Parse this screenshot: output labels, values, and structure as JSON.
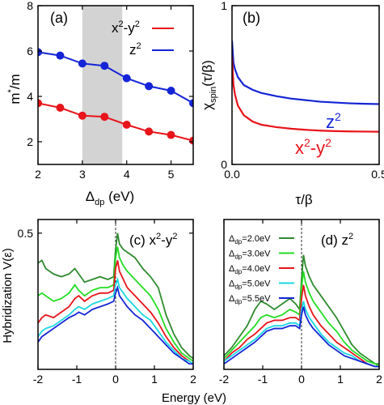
{
  "chart_data": [
    {
      "panel": "(a)",
      "type": "line",
      "xlabel_main": "Δ",
      "xlabel_sub": "dp",
      "xlabel_unit": " (eV)",
      "ylabel_main": "m",
      "ylabel_sup": "*",
      "ylabel_rest": "/m",
      "xlim": [
        2,
        5.5
      ],
      "ylim": [
        1,
        8
      ],
      "xticks": [
        2,
        3,
        4,
        5
      ],
      "yticks": [
        2,
        4,
        6,
        8
      ],
      "shaded_range": [
        3.0,
        3.9
      ],
      "legend": "top-right",
      "series": [
        {
          "name": "x2-y2",
          "label_base": "x",
          "label_sup": "2",
          "label_mid": "-y",
          "label_sup2": "2",
          "color": "#e8141b",
          "x": [
            2.0,
            2.5,
            3.0,
            3.5,
            4.0,
            4.5,
            5.0,
            5.5
          ],
          "y": [
            3.7,
            3.5,
            3.15,
            3.1,
            2.75,
            2.45,
            2.3,
            2.05
          ]
        },
        {
          "name": "z2",
          "label_base": "z",
          "label_sup": "2",
          "label_mid": "",
          "label_sup2": "",
          "color": "#1424d6",
          "x": [
            2.0,
            2.5,
            3.0,
            3.5,
            4.0,
            4.5,
            5.0,
            5.5
          ],
          "y": [
            5.95,
            5.8,
            5.45,
            5.35,
            4.8,
            4.45,
            4.25,
            3.7
          ]
        }
      ]
    },
    {
      "panel": "(b)",
      "type": "line",
      "xlabel": "τ/β",
      "ylabel_main": "χ",
      "ylabel_sub": "spin",
      "ylabel_rest": "(τ/β)",
      "xlim": [
        0,
        0.5
      ],
      "ylim": [
        0,
        1
      ],
      "xticks": [
        0.0,
        0.5
      ],
      "xtick_labels": [
        "0.0",
        "0.5"
      ],
      "yticks": [
        0,
        1
      ],
      "series": [
        {
          "name": "z2",
          "label_base": "z",
          "label_sup": "2",
          "color": "#1424d6",
          "x": [
            0.0,
            0.005,
            0.01,
            0.02,
            0.04,
            0.07,
            0.1,
            0.15,
            0.2,
            0.25,
            0.3,
            0.35,
            0.4,
            0.45,
            0.5
          ],
          "y": [
            0.78,
            0.64,
            0.6,
            0.55,
            0.5,
            0.47,
            0.45,
            0.43,
            0.415,
            0.405,
            0.395,
            0.39,
            0.385,
            0.382,
            0.38
          ]
        },
        {
          "name": "x2-y2",
          "label_base": "x",
          "label_sup": "2",
          "label_mid": "-y",
          "label_sup2": "2",
          "color": "#e8141b",
          "x": [
            0.0,
            0.005,
            0.01,
            0.02,
            0.04,
            0.07,
            0.1,
            0.15,
            0.2,
            0.25,
            0.3,
            0.35,
            0.4,
            0.45,
            0.5
          ],
          "y": [
            0.68,
            0.5,
            0.44,
            0.37,
            0.31,
            0.27,
            0.25,
            0.235,
            0.225,
            0.218,
            0.213,
            0.21,
            0.208,
            0.207,
            0.206
          ]
        }
      ]
    },
    {
      "panel": "(c)",
      "type": "line",
      "panel_label_base": "(c) x",
      "panel_sup": "2",
      "panel_mid": "-y",
      "panel_sup2": "2",
      "ylabel": "Hybridization V(ε)",
      "xlim": [
        -2,
        2
      ],
      "ylim": [
        0,
        0.55
      ],
      "xticks": [
        -2,
        -1,
        0,
        1,
        2
      ],
      "yticks": [
        0.5
      ],
      "ytick_labels": [
        "0.5"
      ],
      "series": [
        {
          "name": "Δdp=2.0eV",
          "color": "#2e8b2e",
          "x": [
            -2.0,
            -1.9,
            -1.8,
            -1.6,
            -1.4,
            -1.2,
            -1.05,
            -0.95,
            -0.8,
            -0.6,
            -0.4,
            -0.2,
            -0.05,
            0.0,
            0.05,
            0.1,
            0.2,
            0.3,
            0.5,
            0.7,
            0.9,
            1.1,
            1.3,
            1.5,
            1.7,
            1.9,
            2.0
          ],
          "y": [
            0.39,
            0.4,
            0.37,
            0.35,
            0.34,
            0.35,
            0.37,
            0.35,
            0.32,
            0.33,
            0.34,
            0.33,
            0.34,
            0.44,
            0.5,
            0.46,
            0.44,
            0.43,
            0.41,
            0.37,
            0.34,
            0.3,
            0.2,
            0.13,
            0.08,
            0.05,
            0.04
          ]
        },
        {
          "name": "Δdp=3.0eV",
          "color": "#22dd22",
          "x": [
            -2.0,
            -1.9,
            -1.8,
            -1.6,
            -1.4,
            -1.2,
            -1.05,
            -0.95,
            -0.8,
            -0.6,
            -0.4,
            -0.2,
            -0.05,
            0.0,
            0.05,
            0.1,
            0.2,
            0.3,
            0.5,
            0.7,
            0.9,
            1.1,
            1.3,
            1.5,
            1.7,
            1.9,
            2.0
          ],
          "y": [
            0.27,
            0.28,
            0.27,
            0.25,
            0.26,
            0.28,
            0.31,
            0.29,
            0.27,
            0.29,
            0.3,
            0.3,
            0.31,
            0.41,
            0.45,
            0.41,
            0.38,
            0.36,
            0.33,
            0.3,
            0.27,
            0.22,
            0.15,
            0.1,
            0.06,
            0.04,
            0.03
          ]
        },
        {
          "name": "Δdp=4.0eV",
          "color": "#e8141b",
          "x": [
            -2.0,
            -1.9,
            -1.8,
            -1.6,
            -1.4,
            -1.2,
            -1.05,
            -0.95,
            -0.8,
            -0.6,
            -0.4,
            -0.2,
            -0.05,
            0.0,
            0.05,
            0.1,
            0.2,
            0.3,
            0.5,
            0.7,
            0.9,
            1.1,
            1.3,
            1.5,
            1.7,
            1.9,
            2.0
          ],
          "y": [
            0.17,
            0.19,
            0.2,
            0.19,
            0.21,
            0.23,
            0.26,
            0.27,
            0.25,
            0.27,
            0.28,
            0.28,
            0.29,
            0.37,
            0.4,
            0.36,
            0.33,
            0.3,
            0.27,
            0.24,
            0.21,
            0.17,
            0.12,
            0.08,
            0.05,
            0.03,
            0.02
          ]
        },
        {
          "name": "Δdp=5.0eV",
          "color": "#18d8e0",
          "x": [
            -2.0,
            -1.9,
            -1.8,
            -1.6,
            -1.4,
            -1.2,
            -1.05,
            -0.95,
            -0.8,
            -0.6,
            -0.4,
            -0.2,
            -0.05,
            0.0,
            0.05,
            0.1,
            0.2,
            0.3,
            0.5,
            0.7,
            0.9,
            1.1,
            1.3,
            1.5,
            1.7,
            1.9,
            2.0
          ],
          "y": [
            0.12,
            0.14,
            0.15,
            0.16,
            0.18,
            0.2,
            0.22,
            0.23,
            0.22,
            0.24,
            0.25,
            0.26,
            0.27,
            0.31,
            0.33,
            0.3,
            0.28,
            0.26,
            0.23,
            0.2,
            0.18,
            0.14,
            0.1,
            0.07,
            0.04,
            0.03,
            0.02
          ]
        },
        {
          "name": "Δdp=5.5eV",
          "color": "#1424d6",
          "x": [
            -2.0,
            -1.9,
            -1.8,
            -1.6,
            -1.4,
            -1.2,
            -1.05,
            -0.95,
            -0.8,
            -0.6,
            -0.4,
            -0.2,
            -0.05,
            0.0,
            0.05,
            0.1,
            0.2,
            0.3,
            0.5,
            0.7,
            0.9,
            1.1,
            1.3,
            1.5,
            1.7,
            1.9,
            2.0
          ],
          "y": [
            0.1,
            0.12,
            0.13,
            0.15,
            0.17,
            0.19,
            0.2,
            0.21,
            0.2,
            0.22,
            0.23,
            0.24,
            0.25,
            0.28,
            0.3,
            0.27,
            0.25,
            0.23,
            0.2,
            0.18,
            0.15,
            0.12,
            0.09,
            0.06,
            0.04,
            0.02,
            0.02
          ]
        }
      ]
    },
    {
      "panel": "(d)",
      "type": "line",
      "panel_label_base": "(d) z",
      "panel_sup": "2",
      "xlim": [
        -2,
        2
      ],
      "ylim": [
        0,
        0.55
      ],
      "xticks": [
        -2,
        -1,
        0,
        1,
        2
      ],
      "legend": "top-left",
      "legend_prefix": "Δ",
      "legend_sub": "dp",
      "series": [
        {
          "name": "Δdp=2.0eV",
          "label_value": "=2.0eV",
          "color": "#2e8b2e",
          "x": [
            -2.0,
            -1.8,
            -1.6,
            -1.4,
            -1.2,
            -1.05,
            -0.9,
            -0.7,
            -0.5,
            -0.3,
            -0.15,
            -0.05,
            0.0,
            0.05,
            0.1,
            0.2,
            0.3,
            0.5,
            0.7,
            0.9,
            1.1,
            1.3,
            1.5,
            1.7,
            1.9,
            2.0
          ],
          "y": [
            0.05,
            0.08,
            0.12,
            0.16,
            0.22,
            0.25,
            0.24,
            0.22,
            0.24,
            0.26,
            0.24,
            0.22,
            0.33,
            0.42,
            0.38,
            0.34,
            0.31,
            0.27,
            0.23,
            0.19,
            0.14,
            0.09,
            0.06,
            0.04,
            0.02,
            0.02
          ]
        },
        {
          "name": "Δdp=3.0eV",
          "label_value": "=3.0eV",
          "color": "#22dd22",
          "x": [
            -2.0,
            -1.8,
            -1.6,
            -1.4,
            -1.2,
            -1.05,
            -0.9,
            -0.7,
            -0.5,
            -0.3,
            -0.15,
            -0.05,
            0.0,
            0.05,
            0.1,
            0.2,
            0.3,
            0.5,
            0.7,
            0.9,
            1.1,
            1.3,
            1.5,
            1.7,
            1.9,
            2.0
          ],
          "y": [
            0.04,
            0.07,
            0.1,
            0.13,
            0.16,
            0.19,
            0.2,
            0.19,
            0.2,
            0.22,
            0.21,
            0.2,
            0.3,
            0.36,
            0.32,
            0.28,
            0.25,
            0.21,
            0.17,
            0.14,
            0.1,
            0.07,
            0.05,
            0.03,
            0.02,
            0.01
          ]
        },
        {
          "name": "Δdp=4.0eV",
          "label_value": "=4.0eV",
          "color": "#e8141b",
          "x": [
            -2.0,
            -1.8,
            -1.6,
            -1.4,
            -1.2,
            -1.05,
            -0.9,
            -0.7,
            -0.5,
            -0.3,
            -0.15,
            -0.05,
            0.0,
            0.05,
            0.1,
            0.2,
            0.3,
            0.5,
            0.7,
            0.9,
            1.1,
            1.3,
            1.5,
            1.7,
            1.9,
            2.0
          ],
          "y": [
            0.03,
            0.06,
            0.08,
            0.11,
            0.13,
            0.15,
            0.17,
            0.18,
            0.18,
            0.19,
            0.19,
            0.18,
            0.26,
            0.31,
            0.27,
            0.23,
            0.2,
            0.16,
            0.13,
            0.1,
            0.08,
            0.06,
            0.04,
            0.02,
            0.01,
            0.01
          ]
        },
        {
          "name": "Δdp=5.0eV",
          "label_value": "=5.0eV",
          "color": "#18d8e0",
          "x": [
            -2.0,
            -1.8,
            -1.6,
            -1.4,
            -1.2,
            -1.05,
            -0.9,
            -0.7,
            -0.5,
            -0.3,
            -0.15,
            -0.05,
            0.0,
            0.05,
            0.1,
            0.2,
            0.3,
            0.5,
            0.7,
            0.9,
            1.1,
            1.3,
            1.5,
            1.7,
            1.9,
            2.0
          ],
          "y": [
            0.03,
            0.05,
            0.07,
            0.09,
            0.11,
            0.13,
            0.15,
            0.16,
            0.16,
            0.17,
            0.17,
            0.16,
            0.22,
            0.25,
            0.22,
            0.19,
            0.17,
            0.13,
            0.1,
            0.08,
            0.06,
            0.05,
            0.03,
            0.02,
            0.01,
            0.01
          ]
        },
        {
          "name": "Δdp=5.5eV",
          "label_value": "=5.5eV",
          "color": "#1424d6",
          "x": [
            -2.0,
            -1.8,
            -1.6,
            -1.4,
            -1.2,
            -1.05,
            -0.9,
            -0.7,
            -0.5,
            -0.3,
            -0.15,
            -0.05,
            0.0,
            0.05,
            0.1,
            0.2,
            0.3,
            0.5,
            0.7,
            0.9,
            1.1,
            1.3,
            1.5,
            1.7,
            1.9,
            2.0
          ],
          "y": [
            0.02,
            0.04,
            0.06,
            0.08,
            0.1,
            0.12,
            0.14,
            0.15,
            0.15,
            0.16,
            0.16,
            0.15,
            0.2,
            0.23,
            0.2,
            0.17,
            0.15,
            0.12,
            0.09,
            0.07,
            0.05,
            0.04,
            0.03,
            0.02,
            0.01,
            0.01
          ]
        }
      ]
    }
  ],
  "shared": {
    "xlabel_bottom": "Energy (eV)"
  }
}
